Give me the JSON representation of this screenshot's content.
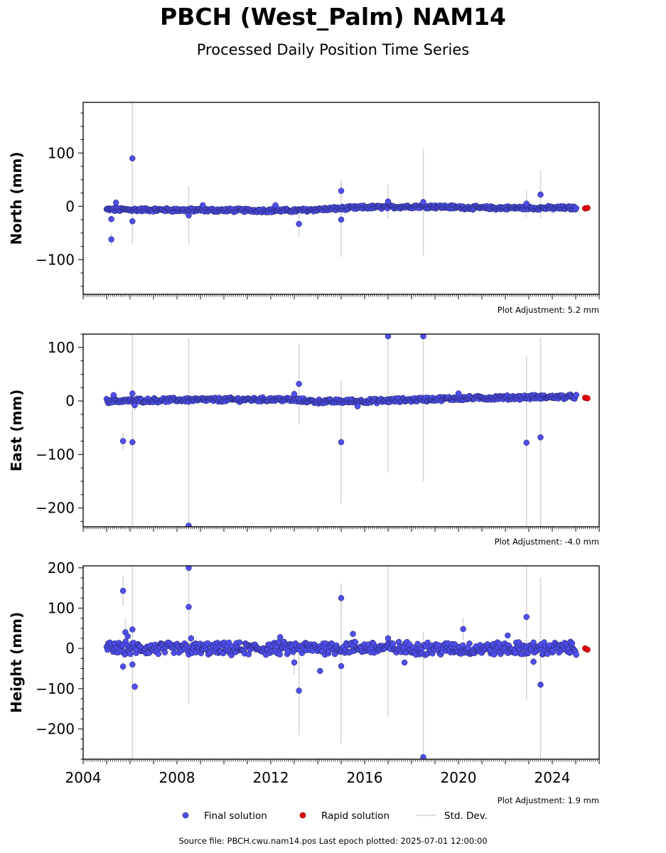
{
  "page": {
    "title": "PBCH (West_Palm) NAM14",
    "subtitle": "Processed Daily Position Time Series",
    "footer": "Source file: PBCH.cwu.nam14.pos  Last epoch plotted: 2025-07-01 12:00:00"
  },
  "legend": {
    "final_label": "Final solution",
    "rapid_label": "Rapid solution",
    "std_label": "Std. Dev."
  },
  "colors": {
    "final": "#4f4ff0",
    "final_edge": "#1a1a4a",
    "rapid": "#e8000b",
    "std": "#d3d3d3"
  },
  "chart_data": [
    {
      "type": "scatter",
      "ylabel": "North (mm)",
      "ylim": [
        -165,
        195
      ],
      "yticks": [
        -100,
        0,
        100
      ],
      "xlim": [
        2004.0,
        2026.0
      ],
      "xticks": [
        2004,
        2008,
        2012,
        2016,
        2020,
        2024
      ],
      "adjustment": "Plot Adjustment: 5.2 mm",
      "trend": [
        [
          2005.0,
          -6
        ],
        [
          2008.5,
          -7
        ],
        [
          2013.0,
          -8
        ],
        [
          2016.0,
          -2
        ],
        [
          2018.5,
          0
        ],
        [
          2021.0,
          -3
        ],
        [
          2025.0,
          -3
        ]
      ],
      "band": 3,
      "final_outliers": [
        {
          "x": 2005.2,
          "y": -62,
          "sd": 12
        },
        {
          "x": 2005.4,
          "y": 7,
          "sd": 6
        },
        {
          "x": 2006.1,
          "y": 90,
          "sd": 110
        },
        {
          "x": 2006.1,
          "y": -28,
          "sd": 42
        },
        {
          "x": 2005.2,
          "y": -24,
          "sd": 5
        },
        {
          "x": 2008.5,
          "y": -17,
          "sd": 55
        },
        {
          "x": 2012.2,
          "y": 2,
          "sd": 3
        },
        {
          "x": 2013.2,
          "y": -33,
          "sd": 25
        },
        {
          "x": 2015.0,
          "y": 29,
          "sd": 20
        },
        {
          "x": 2015.0,
          "y": -25,
          "sd": 70
        },
        {
          "x": 2017.0,
          "y": 9,
          "sd": 32
        },
        {
          "x": 2018.5,
          "y": 8,
          "sd": 100
        },
        {
          "x": 2022.9,
          "y": 5,
          "sd": 25
        },
        {
          "x": 2023.5,
          "y": 22,
          "sd": 45
        },
        {
          "x": 2009.1,
          "y": 2,
          "sd": 3
        }
      ],
      "rapid": [
        {
          "x": 2025.4,
          "y": -4
        },
        {
          "x": 2025.5,
          "y": -3
        }
      ]
    },
    {
      "type": "scatter",
      "ylabel": "East (mm)",
      "ylim": [
        -235,
        125
      ],
      "yticks": [
        -200,
        -100,
        0,
        100
      ],
      "xlim": [
        2004.0,
        2026.0
      ],
      "xticks": [
        2004,
        2008,
        2012,
        2016,
        2020,
        2024
      ],
      "adjustment": "Plot Adjustment: -4.0 mm",
      "trend": [
        [
          2005.0,
          0
        ],
        [
          2008.0,
          2
        ],
        [
          2012.5,
          3
        ],
        [
          2014.0,
          -1
        ],
        [
          2016.5,
          0
        ],
        [
          2020.0,
          5
        ],
        [
          2023.0,
          7
        ],
        [
          2025.0,
          8
        ]
      ],
      "band": 3.5,
      "final_outliers": [
        {
          "x": 2005.7,
          "y": -75,
          "sd": 16
        },
        {
          "x": 2006.1,
          "y": -77,
          "sd": 200
        },
        {
          "x": 2006.1,
          "y": 14,
          "sd": 120
        },
        {
          "x": 2006.2,
          "y": -8,
          "sd": 10
        },
        {
          "x": 2008.5,
          "y": -233,
          "sd": 350
        },
        {
          "x": 2013.0,
          "y": 13,
          "sd": 10
        },
        {
          "x": 2013.2,
          "y": 32,
          "sd": 76
        },
        {
          "x": 2015.0,
          "y": -77,
          "sd": 115
        },
        {
          "x": 2015.7,
          "y": -10,
          "sd": 6
        },
        {
          "x": 2017.0,
          "y": 121,
          "sd": 255
        },
        {
          "x": 2018.5,
          "y": 121,
          "sd": 272
        },
        {
          "x": 2020.0,
          "y": 14,
          "sd": 4
        },
        {
          "x": 2022.9,
          "y": -78,
          "sd": 162
        },
        {
          "x": 2023.5,
          "y": -68,
          "sd": 186
        },
        {
          "x": 2005.3,
          "y": 11,
          "sd": 4
        }
      ],
      "rapid": [
        {
          "x": 2025.4,
          "y": 6
        },
        {
          "x": 2025.5,
          "y": 5
        }
      ]
    },
    {
      "type": "scatter",
      "ylabel": "Height (mm)",
      "ylim": [
        -275,
        205
      ],
      "yticks": [
        -200,
        -100,
        0,
        100,
        200
      ],
      "xlim": [
        2004.0,
        2026.0
      ],
      "xticks": [
        2004,
        2008,
        2012,
        2016,
        2020,
        2024
      ],
      "xticklabels": [
        "2004",
        "2008",
        "2012",
        "2016",
        "2020",
        "2024"
      ],
      "adjustment": "Plot Adjustment: 1.9 mm",
      "trend": [
        [
          2005.0,
          0
        ],
        [
          2010.0,
          -2
        ],
        [
          2015.0,
          2
        ],
        [
          2020.0,
          -1
        ],
        [
          2025.0,
          0
        ]
      ],
      "band": 14,
      "final_outliers": [
        {
          "x": 2005.7,
          "y": 143,
          "sd": 38
        },
        {
          "x": 2005.7,
          "y": -45,
          "sd": 12
        },
        {
          "x": 2005.8,
          "y": 40,
          "sd": 35
        },
        {
          "x": 2006.1,
          "y": 47,
          "sd": 100
        },
        {
          "x": 2006.1,
          "y": -40,
          "sd": 250
        },
        {
          "x": 2006.2,
          "y": -95,
          "sd": 12
        },
        {
          "x": 2008.5,
          "y": 200,
          "sd": 20
        },
        {
          "x": 2008.5,
          "y": 103,
          "sd": 240
        },
        {
          "x": 2008.6,
          "y": 25,
          "sd": 10
        },
        {
          "x": 2012.4,
          "y": 28,
          "sd": 6
        },
        {
          "x": 2013.0,
          "y": -35,
          "sd": 30
        },
        {
          "x": 2013.2,
          "y": -105,
          "sd": 110
        },
        {
          "x": 2014.1,
          "y": -56,
          "sd": 6
        },
        {
          "x": 2015.0,
          "y": 125,
          "sd": 36
        },
        {
          "x": 2015.0,
          "y": -44,
          "sd": 192
        },
        {
          "x": 2015.5,
          "y": 36,
          "sd": 6
        },
        {
          "x": 2017.0,
          "y": 25,
          "sd": 195
        },
        {
          "x": 2017.7,
          "y": -35,
          "sd": 6
        },
        {
          "x": 2018.5,
          "y": -270,
          "sd": 310
        },
        {
          "x": 2020.2,
          "y": 48,
          "sd": 28
        },
        {
          "x": 2022.1,
          "y": 32,
          "sd": 6
        },
        {
          "x": 2022.9,
          "y": 78,
          "sd": 205
        },
        {
          "x": 2023.2,
          "y": -33,
          "sd": 12
        },
        {
          "x": 2023.5,
          "y": -90,
          "sd": 265
        },
        {
          "x": 2005.9,
          "y": 30,
          "sd": 10
        }
      ],
      "rapid": [
        {
          "x": 2025.4,
          "y": 0
        },
        {
          "x": 2025.5,
          "y": -3
        }
      ]
    }
  ]
}
